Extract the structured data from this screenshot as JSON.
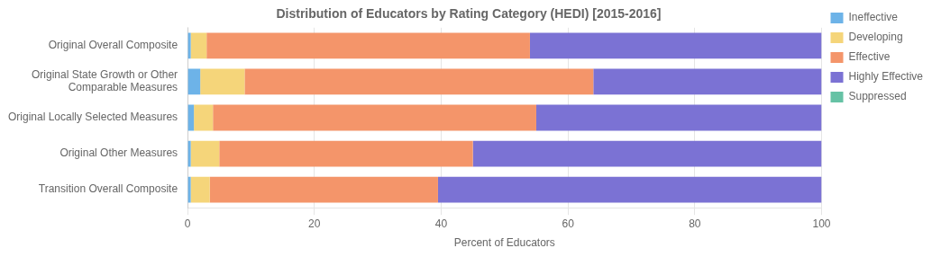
{
  "chart_data": {
    "type": "bar",
    "orientation": "horizontal",
    "stacked": true,
    "title": "Distribution of Educators by Rating Category (HEDI) [2015-2016]",
    "categories": [
      "Original Overall Composite",
      "Original State Growth or Other\nComparable Measures",
      "Original Locally Selected Measures",
      "Original Other Measures",
      "Transition Overall Composite"
    ],
    "series": [
      {
        "name": "Ineffective",
        "color": "#6db3e8",
        "values": [
          0.5,
          2.0,
          1.0,
          0.5,
          0.5
        ]
      },
      {
        "name": "Developing",
        "color": "#f5d57a",
        "values": [
          2.5,
          7.0,
          3.0,
          4.5,
          3.0
        ]
      },
      {
        "name": "Effective",
        "color": "#f4956a",
        "values": [
          51.0,
          55.0,
          51.0,
          40.0,
          36.0
        ]
      },
      {
        "name": "Highly Effective",
        "color": "#7b72d4",
        "values": [
          46.0,
          36.0,
          45.0,
          55.0,
          60.5
        ]
      },
      {
        "name": "Suppressed",
        "color": "#66c2a5",
        "values": [
          0.0,
          0.0,
          0.0,
          0.0,
          0.0
        ]
      }
    ],
    "xlabel": "Percent of Educators",
    "xlim": [
      0,
      100
    ],
    "xticks": [
      0,
      20,
      40,
      60,
      80,
      100
    ],
    "grid": true,
    "legend": "right"
  }
}
